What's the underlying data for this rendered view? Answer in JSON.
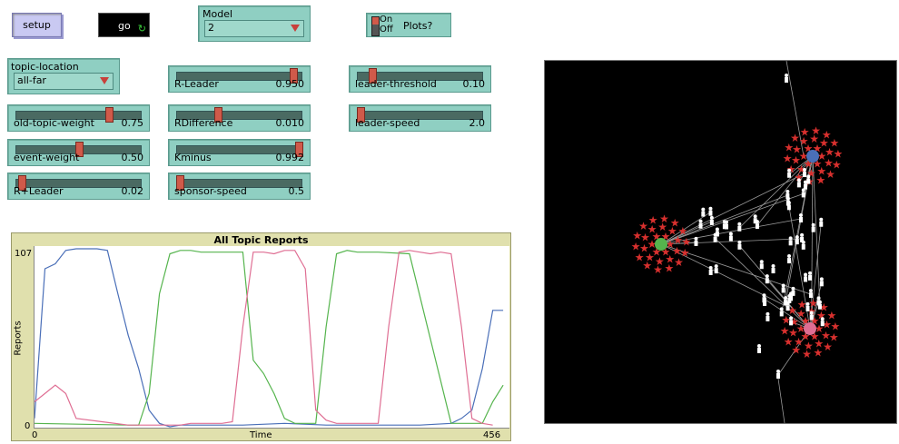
{
  "buttons": {
    "setup": "setup",
    "go": "go"
  },
  "chooser_model": {
    "label": "Model",
    "value": "2"
  },
  "switch_plots": {
    "on": "On",
    "off": "Off",
    "label": "Plots?"
  },
  "chooser_topic": {
    "label": "topic-location",
    "value": "all-far"
  },
  "sliders": [
    {
      "id": "r-leader",
      "name": "R-Leader",
      "value": "0.950",
      "fraction": 0.95
    },
    {
      "id": "leader-threshold",
      "name": "leader-threshold",
      "value": "0.10",
      "fraction": 0.1
    },
    {
      "id": "old-topic-weight",
      "name": "old-topic-weight",
      "value": "0.75",
      "fraction": 0.75
    },
    {
      "id": "rdifference",
      "name": "RDifference",
      "value": "0.010",
      "fraction": 0.32
    },
    {
      "id": "leader-speed",
      "name": "leader-speed",
      "value": "2.0",
      "fraction": 0.0
    },
    {
      "id": "event-weight",
      "name": "event-weight",
      "value": "0.50",
      "fraction": 0.5
    },
    {
      "id": "kminus",
      "name": "Kminus",
      "value": "0.992",
      "fraction": 0.99
    },
    {
      "id": "r-plus-leader",
      "name": "R+Leader",
      "value": "0.02",
      "fraction": 0.02
    },
    {
      "id": "sponsor-speed",
      "name": "sponsor-speed",
      "value": "0.5",
      "fraction": 0.0
    }
  ],
  "plot": {
    "title": "All Topic Reports",
    "ylabel": "Reports",
    "xlabel": "Time",
    "ymax_label": "107",
    "ymin_label": "0",
    "xmin_label": "0",
    "xmax_label": "456"
  },
  "chart_data": {
    "type": "line",
    "title": "All Topic Reports",
    "xlabel": "Time",
    "ylabel": "Reports",
    "xlim": [
      0,
      456
    ],
    "ylim": [
      0,
      107
    ],
    "series": [
      {
        "color": "#4a6fb8",
        "x": [
          0,
          10,
          20,
          30,
          40,
          50,
          60,
          70,
          80,
          90,
          100,
          110,
          120,
          130,
          140,
          200,
          240,
          280,
          330,
          370,
          400,
          410,
          420,
          430,
          440,
          450
        ],
        "y": [
          5,
          95,
          98,
          106,
          107,
          107,
          107,
          106,
          80,
          55,
          35,
          10,
          2,
          0,
          1,
          1,
          2,
          1,
          1,
          1,
          2,
          5,
          10,
          35,
          70,
          70
        ]
      },
      {
        "color": "#55b44d",
        "x": [
          0,
          90,
          100,
          110,
          120,
          130,
          140,
          150,
          160,
          200,
          210,
          220,
          230,
          240,
          250,
          260,
          270,
          280,
          290,
          300,
          310,
          330,
          360,
          400,
          430,
          440,
          450
        ],
        "y": [
          2,
          1,
          1,
          20,
          80,
          104,
          106,
          106,
          105,
          105,
          40,
          32,
          20,
          5,
          2,
          2,
          2,
          60,
          104,
          106,
          105,
          105,
          104,
          2,
          2,
          15,
          25
        ]
      },
      {
        "color": "#df6e93",
        "x": [
          0,
          10,
          20,
          30,
          40,
          90,
          140,
          150,
          160,
          170,
          180,
          190,
          200,
          210,
          220,
          230,
          240,
          250,
          260,
          270,
          280,
          290,
          300,
          310,
          320,
          330,
          340,
          350,
          360,
          370,
          380,
          390,
          400,
          410,
          420,
          430,
          440
        ],
        "y": [
          15,
          20,
          25,
          20,
          5,
          1,
          1,
          2,
          2,
          2,
          2,
          3,
          60,
          105,
          105,
          104,
          106,
          106,
          95,
          10,
          4,
          2,
          2,
          2,
          2,
          2,
          60,
          105,
          106,
          105,
          104,
          105,
          104,
          60,
          5,
          2,
          1
        ]
      }
    ]
  },
  "world": {
    "leader_colors": [
      "#4a6fb8",
      "#55b44d",
      "#df6e93"
    ],
    "star_color": "#d8302e",
    "agent_color": "#ffffff",
    "link_color": "#9a9a9a"
  }
}
